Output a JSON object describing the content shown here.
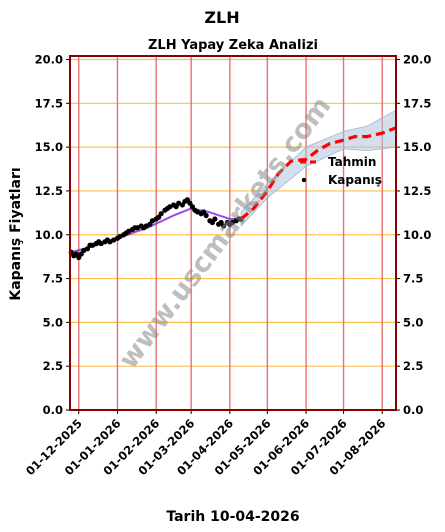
{
  "header": {
    "ticker": "ZLH",
    "footer": "Tarih 10-04-2026"
  },
  "watermark": "www.uscmarkets.com",
  "chart_data": {
    "type": "line",
    "title": "ZLH Yapay Zeka Analizi",
    "ylabel": "Kapanış Fiyatları",
    "ylim": [
      0,
      20.2
    ],
    "yticks": [
      "0.0",
      "2.5",
      "5.0",
      "7.5",
      "10.0",
      "12.5",
      "15.0",
      "17.5",
      "20.0"
    ],
    "xlim": [
      "2025-11-24",
      "2026-08-12"
    ],
    "xticks": [
      {
        "date": "2025-12-01",
        "label": "01-12-2025"
      },
      {
        "date": "2026-01-01",
        "label": "01-01-2026"
      },
      {
        "date": "2026-02-01",
        "label": "01-02-2026"
      },
      {
        "date": "2026-03-01",
        "label": "01-03-2026"
      },
      {
        "date": "2026-04-01",
        "label": "01-04-2026"
      },
      {
        "date": "2026-05-01",
        "label": "01-05-2026"
      },
      {
        "date": "2026-06-01",
        "label": "01-06-2026"
      },
      {
        "date": "2026-07-01",
        "label": "01-07-2026"
      },
      {
        "date": "2026-08-01",
        "label": "01-08-2026"
      }
    ],
    "grid": true,
    "legend": {
      "position": "right",
      "entries": [
        {
          "label": "Tahmin"
        },
        {
          "label": "Kapanış"
        }
      ]
    },
    "colors": {
      "close": "#000000",
      "band": "#b0c4de",
      "trend": "#8a2be2",
      "forecast": "#ff0000",
      "gridH": "#ffc04d",
      "gridV": "#e57373",
      "frame": "#8b0000"
    },
    "series": [
      {
        "name": "Kapanış",
        "type": "scatter",
        "points": [
          [
            "2025-11-25",
            9.0
          ],
          [
            "2025-11-27",
            8.8
          ],
          [
            "2025-11-29",
            8.9
          ],
          [
            "2025-12-01",
            8.7
          ],
          [
            "2025-12-03",
            8.9
          ],
          [
            "2025-12-05",
            9.1
          ],
          [
            "2025-12-08",
            9.2
          ],
          [
            "2025-12-10",
            9.4
          ],
          [
            "2025-12-12",
            9.4
          ],
          [
            "2025-12-15",
            9.5
          ],
          [
            "2025-12-17",
            9.6
          ],
          [
            "2025-12-19",
            9.5
          ],
          [
            "2025-12-22",
            9.6
          ],
          [
            "2025-12-24",
            9.7
          ],
          [
            "2025-12-26",
            9.6
          ],
          [
            "2025-12-29",
            9.7
          ],
          [
            "2026-01-01",
            9.8
          ],
          [
            "2026-01-03",
            9.9
          ],
          [
            "2026-01-06",
            10.0
          ],
          [
            "2026-01-08",
            10.1
          ],
          [
            "2026-01-10",
            10.2
          ],
          [
            "2026-01-13",
            10.3
          ],
          [
            "2026-01-15",
            10.4
          ],
          [
            "2026-01-17",
            10.4
          ],
          [
            "2026-01-20",
            10.5
          ],
          [
            "2026-01-22",
            10.4
          ],
          [
            "2026-01-24",
            10.5
          ],
          [
            "2026-01-27",
            10.6
          ],
          [
            "2026-01-29",
            10.8
          ],
          [
            "2026-02-01",
            10.9
          ],
          [
            "2026-02-03",
            11.0
          ],
          [
            "2026-02-05",
            11.2
          ],
          [
            "2026-02-08",
            11.4
          ],
          [
            "2026-02-10",
            11.5
          ],
          [
            "2026-02-12",
            11.6
          ],
          [
            "2026-02-15",
            11.7
          ],
          [
            "2026-02-17",
            11.6
          ],
          [
            "2026-02-19",
            11.8
          ],
          [
            "2026-02-22",
            11.7
          ],
          [
            "2026-02-24",
            11.9
          ],
          [
            "2026-02-26",
            12.0
          ],
          [
            "2026-02-28",
            11.8
          ],
          [
            "2026-03-02",
            11.6
          ],
          [
            "2026-03-04",
            11.4
          ],
          [
            "2026-03-06",
            11.3
          ],
          [
            "2026-03-09",
            11.2
          ],
          [
            "2026-03-11",
            11.3
          ],
          [
            "2026-03-13",
            11.1
          ],
          [
            "2026-03-16",
            10.8
          ],
          [
            "2026-03-18",
            10.7
          ],
          [
            "2026-03-20",
            10.9
          ],
          [
            "2026-03-23",
            10.6
          ],
          [
            "2026-03-25",
            10.7
          ],
          [
            "2026-03-27",
            10.5
          ],
          [
            "2026-03-30",
            10.7
          ],
          [
            "2026-04-01",
            10.6
          ],
          [
            "2026-04-03",
            10.7
          ],
          [
            "2026-04-06",
            10.8
          ],
          [
            "2026-04-08",
            10.9
          ],
          [
            "2026-04-10",
            10.9
          ]
        ]
      },
      {
        "name": "",
        "type": "line",
        "role": "trend",
        "points": [
          [
            "2025-11-25",
            9.0
          ],
          [
            "2025-12-15",
            9.4
          ],
          [
            "2026-01-05",
            9.9
          ],
          [
            "2026-01-25",
            10.4
          ],
          [
            "2026-02-15",
            11.1
          ],
          [
            "2026-03-01",
            11.5
          ],
          [
            "2026-03-15",
            11.3
          ],
          [
            "2026-04-01",
            10.9
          ],
          [
            "2026-04-10",
            10.9
          ]
        ]
      },
      {
        "name": "Tahmin",
        "type": "line",
        "role": "forecast",
        "points": [
          [
            "2026-04-10",
            10.9
          ],
          [
            "2026-04-20",
            11.5
          ],
          [
            "2026-05-01",
            12.5
          ],
          [
            "2026-05-10",
            13.5
          ],
          [
            "2026-05-20",
            14.2
          ],
          [
            "2026-06-01",
            14.3
          ],
          [
            "2026-06-10",
            14.8
          ],
          [
            "2026-06-20",
            15.2
          ],
          [
            "2026-07-01",
            15.4
          ],
          [
            "2026-07-10",
            15.6
          ],
          [
            "2026-07-20",
            15.6
          ],
          [
            "2026-08-01",
            15.8
          ],
          [
            "2026-08-12",
            16.1
          ]
        ]
      }
    ],
    "forecast_band": {
      "upper": [
        [
          "2026-04-10",
          11.3
        ],
        [
          "2026-05-01",
          12.9
        ],
        [
          "2026-06-01",
          15.0
        ],
        [
          "2026-07-01",
          15.9
        ],
        [
          "2026-07-20",
          16.2
        ],
        [
          "2026-08-12",
          17.1
        ]
      ],
      "lower": [
        [
          "2026-04-10",
          10.5
        ],
        [
          "2026-05-01",
          12.1
        ],
        [
          "2026-06-01",
          13.9
        ],
        [
          "2026-07-01",
          14.9
        ],
        [
          "2026-07-20",
          14.8
        ],
        [
          "2026-08-12",
          15.0
        ]
      ]
    }
  }
}
